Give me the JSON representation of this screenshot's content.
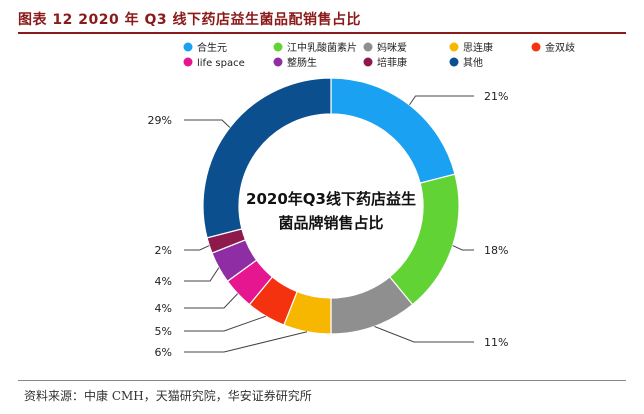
{
  "figure": {
    "caption": "图表 12 2020 年 Q3 线下药店益生菌品配销售占比",
    "source": "资料来源：中康 CMH，天猫研究院，华安证券研究所"
  },
  "chart_data": {
    "type": "pie",
    "variant": "donut",
    "center_title_line1": "2020年Q3线下药店益生",
    "center_title_line2": "菌品牌销售占比",
    "legend_position": "top-left",
    "slices": [
      {
        "name": "合生元",
        "value": 21,
        "label": "21%",
        "color": "#1ba1f2"
      },
      {
        "name": "江中乳酸菌素片",
        "value": 18,
        "label": "18%",
        "color": "#62d334"
      },
      {
        "name": "妈咪爱",
        "value": 11,
        "label": "11%",
        "color": "#8f8f8f"
      },
      {
        "name": "思连康",
        "value": 6,
        "label": "6%",
        "color": "#f7b700"
      },
      {
        "name": "金双歧",
        "value": 5,
        "label": "5%",
        "color": "#f5320f"
      },
      {
        "name": "life space",
        "value": 4,
        "label": "4%",
        "color": "#e5168f"
      },
      {
        "name": "整肠生",
        "value": 4,
        "label": "4%",
        "color": "#8f2ea4"
      },
      {
        "name": "培菲康",
        "value": 2,
        "label": "2%",
        "color": "#8e1a4c"
      },
      {
        "name": "其他",
        "value": 29,
        "label": "29%",
        "color": "#0c4f8e"
      }
    ]
  }
}
